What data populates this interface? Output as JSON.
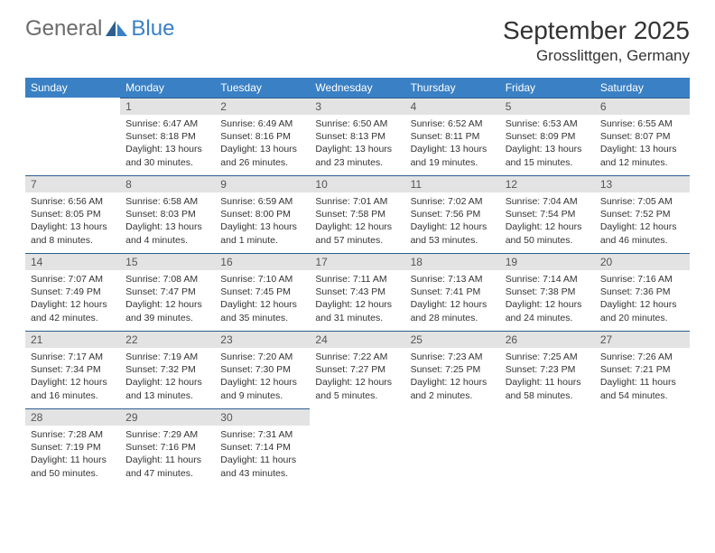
{
  "logo": {
    "general": "General",
    "blue": "Blue"
  },
  "title": "September 2025",
  "location": "Grosslittgen, Germany",
  "header_color": "#3a80c4",
  "daynum_bg": "#e3e3e3",
  "weekdays": [
    "Sunday",
    "Monday",
    "Tuesday",
    "Wednesday",
    "Thursday",
    "Friday",
    "Saturday"
  ],
  "weeks": [
    [
      null,
      {
        "n": "1",
        "sr": "Sunrise: 6:47 AM",
        "ss": "Sunset: 8:18 PM",
        "d1": "Daylight: 13 hours",
        "d2": "and 30 minutes."
      },
      {
        "n": "2",
        "sr": "Sunrise: 6:49 AM",
        "ss": "Sunset: 8:16 PM",
        "d1": "Daylight: 13 hours",
        "d2": "and 26 minutes."
      },
      {
        "n": "3",
        "sr": "Sunrise: 6:50 AM",
        "ss": "Sunset: 8:13 PM",
        "d1": "Daylight: 13 hours",
        "d2": "and 23 minutes."
      },
      {
        "n": "4",
        "sr": "Sunrise: 6:52 AM",
        "ss": "Sunset: 8:11 PM",
        "d1": "Daylight: 13 hours",
        "d2": "and 19 minutes."
      },
      {
        "n": "5",
        "sr": "Sunrise: 6:53 AM",
        "ss": "Sunset: 8:09 PM",
        "d1": "Daylight: 13 hours",
        "d2": "and 15 minutes."
      },
      {
        "n": "6",
        "sr": "Sunrise: 6:55 AM",
        "ss": "Sunset: 8:07 PM",
        "d1": "Daylight: 13 hours",
        "d2": "and 12 minutes."
      }
    ],
    [
      {
        "n": "7",
        "sr": "Sunrise: 6:56 AM",
        "ss": "Sunset: 8:05 PM",
        "d1": "Daylight: 13 hours",
        "d2": "and 8 minutes."
      },
      {
        "n": "8",
        "sr": "Sunrise: 6:58 AM",
        "ss": "Sunset: 8:03 PM",
        "d1": "Daylight: 13 hours",
        "d2": "and 4 minutes."
      },
      {
        "n": "9",
        "sr": "Sunrise: 6:59 AM",
        "ss": "Sunset: 8:00 PM",
        "d1": "Daylight: 13 hours",
        "d2": "and 1 minute."
      },
      {
        "n": "10",
        "sr": "Sunrise: 7:01 AM",
        "ss": "Sunset: 7:58 PM",
        "d1": "Daylight: 12 hours",
        "d2": "and 57 minutes."
      },
      {
        "n": "11",
        "sr": "Sunrise: 7:02 AM",
        "ss": "Sunset: 7:56 PM",
        "d1": "Daylight: 12 hours",
        "d2": "and 53 minutes."
      },
      {
        "n": "12",
        "sr": "Sunrise: 7:04 AM",
        "ss": "Sunset: 7:54 PM",
        "d1": "Daylight: 12 hours",
        "d2": "and 50 minutes."
      },
      {
        "n": "13",
        "sr": "Sunrise: 7:05 AM",
        "ss": "Sunset: 7:52 PM",
        "d1": "Daylight: 12 hours",
        "d2": "and 46 minutes."
      }
    ],
    [
      {
        "n": "14",
        "sr": "Sunrise: 7:07 AM",
        "ss": "Sunset: 7:49 PM",
        "d1": "Daylight: 12 hours",
        "d2": "and 42 minutes."
      },
      {
        "n": "15",
        "sr": "Sunrise: 7:08 AM",
        "ss": "Sunset: 7:47 PM",
        "d1": "Daylight: 12 hours",
        "d2": "and 39 minutes."
      },
      {
        "n": "16",
        "sr": "Sunrise: 7:10 AM",
        "ss": "Sunset: 7:45 PM",
        "d1": "Daylight: 12 hours",
        "d2": "and 35 minutes."
      },
      {
        "n": "17",
        "sr": "Sunrise: 7:11 AM",
        "ss": "Sunset: 7:43 PM",
        "d1": "Daylight: 12 hours",
        "d2": "and 31 minutes."
      },
      {
        "n": "18",
        "sr": "Sunrise: 7:13 AM",
        "ss": "Sunset: 7:41 PM",
        "d1": "Daylight: 12 hours",
        "d2": "and 28 minutes."
      },
      {
        "n": "19",
        "sr": "Sunrise: 7:14 AM",
        "ss": "Sunset: 7:38 PM",
        "d1": "Daylight: 12 hours",
        "d2": "and 24 minutes."
      },
      {
        "n": "20",
        "sr": "Sunrise: 7:16 AM",
        "ss": "Sunset: 7:36 PM",
        "d1": "Daylight: 12 hours",
        "d2": "and 20 minutes."
      }
    ],
    [
      {
        "n": "21",
        "sr": "Sunrise: 7:17 AM",
        "ss": "Sunset: 7:34 PM",
        "d1": "Daylight: 12 hours",
        "d2": "and 16 minutes."
      },
      {
        "n": "22",
        "sr": "Sunrise: 7:19 AM",
        "ss": "Sunset: 7:32 PM",
        "d1": "Daylight: 12 hours",
        "d2": "and 13 minutes."
      },
      {
        "n": "23",
        "sr": "Sunrise: 7:20 AM",
        "ss": "Sunset: 7:30 PM",
        "d1": "Daylight: 12 hours",
        "d2": "and 9 minutes."
      },
      {
        "n": "24",
        "sr": "Sunrise: 7:22 AM",
        "ss": "Sunset: 7:27 PM",
        "d1": "Daylight: 12 hours",
        "d2": "and 5 minutes."
      },
      {
        "n": "25",
        "sr": "Sunrise: 7:23 AM",
        "ss": "Sunset: 7:25 PM",
        "d1": "Daylight: 12 hours",
        "d2": "and 2 minutes."
      },
      {
        "n": "26",
        "sr": "Sunrise: 7:25 AM",
        "ss": "Sunset: 7:23 PM",
        "d1": "Daylight: 11 hours",
        "d2": "and 58 minutes."
      },
      {
        "n": "27",
        "sr": "Sunrise: 7:26 AM",
        "ss": "Sunset: 7:21 PM",
        "d1": "Daylight: 11 hours",
        "d2": "and 54 minutes."
      }
    ],
    [
      {
        "n": "28",
        "sr": "Sunrise: 7:28 AM",
        "ss": "Sunset: 7:19 PM",
        "d1": "Daylight: 11 hours",
        "d2": "and 50 minutes."
      },
      {
        "n": "29",
        "sr": "Sunrise: 7:29 AM",
        "ss": "Sunset: 7:16 PM",
        "d1": "Daylight: 11 hours",
        "d2": "and 47 minutes."
      },
      {
        "n": "30",
        "sr": "Sunrise: 7:31 AM",
        "ss": "Sunset: 7:14 PM",
        "d1": "Daylight: 11 hours",
        "d2": "and 43 minutes."
      },
      null,
      null,
      null,
      null
    ]
  ]
}
